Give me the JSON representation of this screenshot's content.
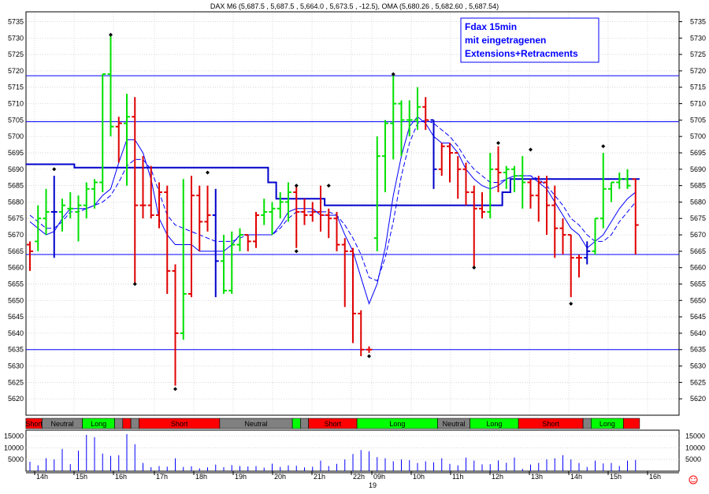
{
  "chart_data": {
    "type": "ohlc",
    "title": "DAX M6 (5,687.5 , 5,687.5 , 5,664.0 , 5,673.5 , -12.5), OMA (5,680.26 , 5,682.60 , 5,687.54)",
    "annotation": [
      "Fdax 15min",
      "mit eingetragenen",
      "Extensions+Retracments"
    ],
    "ylim": [
      5615,
      5738
    ],
    "yticks": [
      5620,
      5625,
      5630,
      5635,
      5640,
      5645,
      5650,
      5655,
      5660,
      5665,
      5670,
      5675,
      5680,
      5685,
      5690,
      5695,
      5700,
      5705,
      5710,
      5715,
      5720,
      5725,
      5730,
      5735
    ],
    "horizontal_lines": [
      5718.5,
      5704.5,
      5664,
      5635
    ],
    "x_time_labels": [
      "14h",
      "15h",
      "16h",
      "17h",
      "18h",
      "19h",
      "20h",
      "21h",
      "22h",
      "09h",
      "10h",
      "11h",
      "12h",
      "13h",
      "14h",
      "15h",
      "16h"
    ],
    "date_label": "19",
    "bars": [
      {
        "o": 5667,
        "h": 5668,
        "l": 5659,
        "c": 5665,
        "col": "red"
      },
      {
        "o": 5668,
        "h": 5679,
        "l": 5665,
        "c": 5675,
        "col": "green"
      },
      {
        "o": 5675,
        "h": 5684,
        "l": 5670,
        "c": 5677,
        "col": "green"
      },
      {
        "o": 5677,
        "h": 5688,
        "l": 5663,
        "c": 5677,
        "col": "blue"
      },
      {
        "o": 5677,
        "h": 5681,
        "l": 5671,
        "c": 5679,
        "col": "green"
      },
      {
        "o": 5678,
        "h": 5683,
        "l": 5675,
        "c": 5678,
        "col": "green"
      },
      {
        "o": 5677,
        "h": 5682,
        "l": 5668,
        "c": 5679,
        "col": "green"
      },
      {
        "o": 5679,
        "h": 5686,
        "l": 5675,
        "c": 5684,
        "col": "green"
      },
      {
        "o": 5684,
        "h": 5687,
        "l": 5678,
        "c": 5686,
        "col": "green"
      },
      {
        "o": 5686,
        "h": 5719,
        "l": 5683,
        "c": 5719,
        "col": "green"
      },
      {
        "o": 5719,
        "h": 5731,
        "l": 5700,
        "c": 5703,
        "col": "green"
      },
      {
        "o": 5703,
        "h": 5706,
        "l": 5692,
        "c": 5704,
        "col": "red"
      },
      {
        "o": 5704,
        "h": 5713,
        "l": 5685,
        "c": 5706,
        "col": "green"
      },
      {
        "o": 5706,
        "h": 5712,
        "l": 5655,
        "c": 5679,
        "col": "red"
      },
      {
        "o": 5679,
        "h": 5694,
        "l": 5675,
        "c": 5679,
        "col": "red"
      },
      {
        "o": 5679,
        "h": 5691,
        "l": 5675,
        "c": 5676,
        "col": "red"
      },
      {
        "o": 5676,
        "h": 5686,
        "l": 5672,
        "c": 5683,
        "col": "red"
      },
      {
        "o": 5683,
        "h": 5685,
        "l": 5652,
        "c": 5659,
        "col": "red"
      },
      {
        "o": 5659,
        "h": 5661,
        "l": 5624,
        "c": 5640,
        "col": "red"
      },
      {
        "o": 5640,
        "h": 5687,
        "l": 5638,
        "c": 5652,
        "col": "green"
      },
      {
        "o": 5652,
        "h": 5688,
        "l": 5651,
        "c": 5682,
        "col": "red"
      },
      {
        "o": 5682,
        "h": 5685,
        "l": 5665,
        "c": 5674,
        "col": "red"
      },
      {
        "o": 5674,
        "h": 5685,
        "l": 5671,
        "c": 5676,
        "col": "red"
      },
      {
        "o": 5676,
        "h": 5684,
        "l": 5651,
        "c": 5662,
        "col": "blue"
      },
      {
        "o": 5662,
        "h": 5670,
        "l": 5652,
        "c": 5653,
        "col": "green"
      },
      {
        "o": 5653,
        "h": 5671,
        "l": 5652,
        "c": 5667,
        "col": "green"
      },
      {
        "o": 5667,
        "h": 5672,
        "l": 5665,
        "c": 5670,
        "col": "green"
      },
      {
        "o": 5670,
        "h": 5670,
        "l": 5665,
        "c": 5668,
        "col": "red"
      },
      {
        "o": 5668,
        "h": 5677,
        "l": 5666,
        "c": 5676,
        "col": "red"
      },
      {
        "o": 5676,
        "h": 5681,
        "l": 5673,
        "c": 5677,
        "col": "green"
      },
      {
        "o": 5677,
        "h": 5680,
        "l": 5670,
        "c": 5678,
        "col": "green"
      },
      {
        "o": 5678,
        "h": 5683,
        "l": 5675,
        "c": 5680,
        "col": "green"
      },
      {
        "o": 5680,
        "h": 5686,
        "l": 5674,
        "c": 5683,
        "col": "green"
      },
      {
        "o": 5683,
        "h": 5685,
        "l": 5666,
        "c": 5677,
        "col": "red"
      },
      {
        "o": 5677,
        "h": 5681,
        "l": 5673,
        "c": 5676,
        "col": "red"
      },
      {
        "o": 5676,
        "h": 5680,
        "l": 5674,
        "c": 5677,
        "col": "red"
      },
      {
        "o": 5677,
        "h": 5685,
        "l": 5671,
        "c": 5676,
        "col": "red"
      },
      {
        "o": 5676,
        "h": 5678,
        "l": 5669,
        "c": 5675,
        "col": "red"
      },
      {
        "o": 5675,
        "h": 5677,
        "l": 5665,
        "c": 5667,
        "col": "red"
      },
      {
        "o": 5667,
        "h": 5669,
        "l": 5648,
        "c": 5665,
        "col": "red"
      },
      {
        "o": 5665,
        "h": 5666,
        "l": 5637,
        "c": 5646,
        "col": "red"
      },
      {
        "o": 5646,
        "h": 5647,
        "l": 5633,
        "c": 5635,
        "col": "red"
      },
      {
        "o": 5635,
        "h": 5636,
        "l": 5634,
        "c": 5635,
        "col": "red"
      },
      {
        "o": 5669,
        "h": 5700,
        "l": 5665,
        "c": 5694,
        "col": "green"
      },
      {
        "o": 5694,
        "h": 5705,
        "l": 5683,
        "c": 5704,
        "col": "green"
      },
      {
        "o": 5704,
        "h": 5719,
        "l": 5693,
        "c": 5710,
        "col": "green"
      },
      {
        "o": 5710,
        "h": 5711,
        "l": 5694,
        "c": 5705,
        "col": "green"
      },
      {
        "o": 5705,
        "h": 5711,
        "l": 5700,
        "c": 5705,
        "col": "green"
      },
      {
        "o": 5705,
        "h": 5715,
        "l": 5702,
        "c": 5709,
        "col": "green"
      },
      {
        "o": 5709,
        "h": 5712,
        "l": 5702,
        "c": 5705,
        "col": "red"
      },
      {
        "o": 5705,
        "h": 5705,
        "l": 5684,
        "c": 5690,
        "col": "blue"
      },
      {
        "o": 5690,
        "h": 5698,
        "l": 5688,
        "c": 5697,
        "col": "red"
      },
      {
        "o": 5697,
        "h": 5698,
        "l": 5686,
        "c": 5695,
        "col": "red"
      },
      {
        "o": 5695,
        "h": 5694,
        "l": 5681,
        "c": 5690,
        "col": "red"
      },
      {
        "o": 5690,
        "h": 5692,
        "l": 5679,
        "c": 5683,
        "col": "red"
      },
      {
        "o": 5683,
        "h": 5685,
        "l": 5660,
        "c": 5678,
        "col": "red"
      },
      {
        "o": 5678,
        "h": 5683,
        "l": 5675,
        "c": 5677,
        "col": "red"
      },
      {
        "o": 5677,
        "h": 5695,
        "l": 5675,
        "c": 5690,
        "col": "green"
      },
      {
        "o": 5690,
        "h": 5697,
        "l": 5683,
        "c": 5689,
        "col": "red"
      },
      {
        "o": 5689,
        "h": 5691,
        "l": 5684,
        "c": 5690,
        "col": "green"
      },
      {
        "o": 5690,
        "h": 5691,
        "l": 5683,
        "c": 5688,
        "col": "green"
      },
      {
        "o": 5688,
        "h": 5694,
        "l": 5678,
        "c": 5686,
        "col": "green"
      },
      {
        "o": 5686,
        "h": 5687,
        "l": 5678,
        "c": 5682,
        "col": "red"
      },
      {
        "o": 5682,
        "h": 5688,
        "l": 5674,
        "c": 5686,
        "col": "red"
      },
      {
        "o": 5686,
        "h": 5688,
        "l": 5670,
        "c": 5679,
        "col": "red"
      },
      {
        "o": 5679,
        "h": 5685,
        "l": 5663,
        "c": 5672,
        "col": "red"
      },
      {
        "o": 5672,
        "h": 5675,
        "l": 5664,
        "c": 5670,
        "col": "red"
      },
      {
        "o": 5670,
        "h": 5670,
        "l": 5651,
        "c": 5663,
        "col": "red"
      },
      {
        "o": 5663,
        "h": 5664,
        "l": 5657,
        "c": 5663,
        "col": "red"
      },
      {
        "o": 5663,
        "h": 5668,
        "l": 5661,
        "c": 5665,
        "col": "blue"
      },
      {
        "o": 5665,
        "h": 5675,
        "l": 5664,
        "c": 5675,
        "col": "green"
      },
      {
        "o": 5675,
        "h": 5695,
        "l": 5672,
        "c": 5684,
        "col": "green"
      },
      {
        "o": 5684,
        "h": 5686,
        "l": 5680,
        "c": 5686,
        "col": "green"
      },
      {
        "o": 5686,
        "h": 5689,
        "l": 5684,
        "c": 5687,
        "col": "green"
      },
      {
        "o": 5687,
        "h": 5690,
        "l": 5684,
        "c": 5685,
        "col": "green"
      },
      {
        "o": 5687,
        "h": 5687,
        "l": 5664,
        "c": 5673,
        "col": "red"
      }
    ],
    "markers": [
      {
        "i": 3,
        "y": 5690
      },
      {
        "i": 10,
        "y": 5731
      },
      {
        "i": 13,
        "y": 5655
      },
      {
        "i": 18,
        "y": 5623
      },
      {
        "i": 22,
        "y": 5689
      },
      {
        "i": 33,
        "y": 5685
      },
      {
        "i": 33,
        "y": 5665
      },
      {
        "i": 37,
        "y": 5685
      },
      {
        "i": 42,
        "y": 5633
      },
      {
        "i": 45,
        "y": 5719
      },
      {
        "i": 55,
        "y": 5660
      },
      {
        "i": 58,
        "y": 5698
      },
      {
        "i": 62,
        "y": 5696
      },
      {
        "i": 67,
        "y": 5649
      },
      {
        "i": 71,
        "y": 5697
      }
    ],
    "series": [
      {
        "style": "solid",
        "values": [
          5674,
          5672,
          5670,
          5671,
          5675,
          5678,
          5678,
          5678,
          5679,
          5682,
          5684,
          5692,
          5699,
          5699,
          5695,
          5687,
          5675,
          5670,
          5667,
          5667,
          5667,
          5665,
          5665,
          5665,
          5665,
          5667,
          5670,
          5670,
          5670,
          5670,
          5670,
          5673,
          5677,
          5678,
          5678,
          5678,
          5676,
          5676,
          5676,
          5670,
          5665,
          5657,
          5649,
          5655,
          5666,
          5682,
          5694,
          5703,
          5706,
          5704,
          5700,
          5698,
          5698,
          5695,
          5690,
          5687,
          5685,
          5684,
          5685,
          5687,
          5688,
          5688,
          5688,
          5686,
          5684,
          5680,
          5676,
          5672,
          5670,
          5666,
          5668,
          5670,
          5674,
          5678,
          5681,
          5683
        ]
      },
      {
        "style": "dashed",
        "values": [
          5676,
          5674,
          5672,
          5672,
          5674,
          5677,
          5677,
          5678,
          5679,
          5680,
          5682,
          5686,
          5691,
          5693,
          5693,
          5690,
          5683,
          5676,
          5673,
          5672,
          5671,
          5670,
          5669,
          5668,
          5668,
          5668,
          5669,
          5670,
          5670,
          5670,
          5670,
          5672,
          5675,
          5677,
          5677,
          5677,
          5677,
          5677,
          5676,
          5673,
          5669,
          5664,
          5657,
          5656,
          5663,
          5674,
          5688,
          5698,
          5704,
          5705,
          5704,
          5702,
          5700,
          5697,
          5693,
          5690,
          5688,
          5686,
          5686,
          5687,
          5688,
          5688,
          5688,
          5687,
          5685,
          5682,
          5679,
          5675,
          5673,
          5670,
          5668,
          5668,
          5670,
          5674,
          5677,
          5680
        ]
      },
      {
        "style": "step",
        "values": [
          5691.5,
          5691.5,
          5691.5,
          5691.5,
          5691.5,
          5691.5,
          5690.5,
          5690.5,
          5690.5,
          5690.5,
          5690.5,
          5690.5,
          5690.5,
          5690.5,
          5690.5,
          5690.5,
          5690.5,
          5690.5,
          5690.5,
          5690.5,
          5690.5,
          5690.5,
          5690.5,
          5690.5,
          5690.5,
          5690.5,
          5690.5,
          5690.5,
          5690.5,
          5690.5,
          5686,
          5681,
          5681,
          5681,
          5681,
          5681,
          5681,
          5679,
          5679,
          5679,
          5679,
          5679,
          5679,
          5679,
          5679,
          5679,
          5679,
          5679,
          5679,
          5679,
          5679,
          5679,
          5679,
          5679,
          5679,
          5679,
          5679,
          5679,
          5679,
          5683,
          5687,
          5687,
          5687,
          5687,
          5687,
          5687,
          5687,
          5687,
          5687,
          5687,
          5687,
          5687,
          5687,
          5687,
          5687,
          5687
        ]
      }
    ],
    "signals": [
      {
        "label": "Short",
        "from": 0,
        "to": 2,
        "color": "#ff0000"
      },
      {
        "label": "Neutral",
        "from": 2,
        "to": 7,
        "color": "#808080"
      },
      {
        "label": "Long",
        "from": 7,
        "to": 11,
        "color": "#00ff00"
      },
      {
        "label": "",
        "from": 11,
        "to": 12,
        "color": "#808080"
      },
      {
        "label": "",
        "from": 12,
        "to": 13,
        "color": "#ff0000"
      },
      {
        "label": "",
        "from": 13,
        "to": 14,
        "color": "#808080"
      },
      {
        "label": "Short",
        "from": 14,
        "to": 24,
        "color": "#ff0000"
      },
      {
        "label": "Neutral",
        "from": 24,
        "to": 33,
        "color": "#808080"
      },
      {
        "label": "",
        "from": 33,
        "to": 34,
        "color": "#00ff00"
      },
      {
        "label": "",
        "from": 34,
        "to": 35,
        "color": "#808080"
      },
      {
        "label": "Short",
        "from": 35,
        "to": 41,
        "color": "#ff0000"
      },
      {
        "label": "Long",
        "from": 41,
        "to": 51,
        "color": "#00ff00"
      },
      {
        "label": "Neutral",
        "from": 51,
        "to": 55,
        "color": "#808080"
      },
      {
        "label": "Long",
        "from": 55,
        "to": 61,
        "color": "#00ff00"
      },
      {
        "label": "Short",
        "from": 61,
        "to": 69,
        "color": "#ff0000"
      },
      {
        "label": "",
        "from": 69,
        "to": 70,
        "color": "#808080"
      },
      {
        "label": "Long",
        "from": 70,
        "to": 74,
        "color": "#00ff00"
      },
      {
        "label": "",
        "from": 74,
        "to": 76,
        "color": "#ff0000"
      }
    ],
    "volume": {
      "ylim": [
        0,
        17500
      ],
      "yticks": [
        5000,
        10000,
        15000
      ],
      "values": [
        4000,
        2500,
        5500,
        5000,
        9500,
        3000,
        8800,
        15500,
        14500,
        7500,
        6500,
        6800,
        15800,
        11500,
        3500,
        1700,
        2200,
        1900,
        5500,
        1800,
        2100,
        1200,
        1600,
        2800,
        1700,
        2600,
        2200,
        2000,
        2200,
        1500,
        3200,
        1800,
        2500,
        2300,
        1600,
        1900,
        4500,
        2200,
        3100,
        5000,
        7300,
        9000,
        8500,
        6000,
        5500,
        4200,
        5000,
        4700,
        3500,
        4200,
        3800,
        5500,
        3100,
        2500,
        5800,
        4500,
        2900,
        3000,
        4600,
        3600,
        5800,
        1000,
        2800,
        3500,
        5000,
        5500,
        6800,
        5000,
        3500,
        1800,
        4500,
        3300,
        3500,
        2200,
        4500,
        4800
      ]
    }
  }
}
